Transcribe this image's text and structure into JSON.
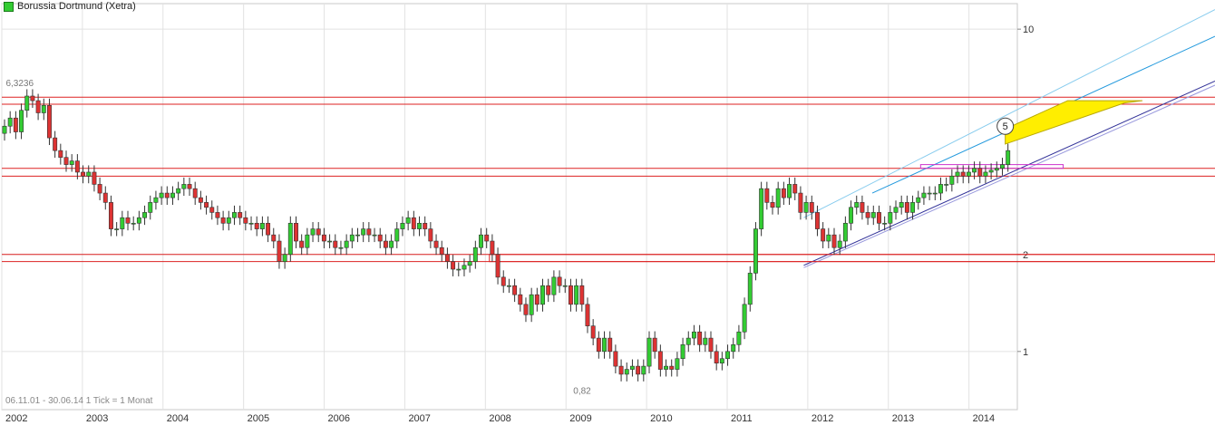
{
  "chart_data": {
    "type": "candlestick",
    "title": "Borussia Dortmund (Xetra)",
    "series_color": "#33cc33",
    "up_color": "#33cc33",
    "down_color": "#dd3333",
    "yscale": "log",
    "ylim": [
      0.66,
      12
    ],
    "y_ticks": [
      {
        "value": 10,
        "label": "10"
      },
      {
        "value": 2,
        "label": "2"
      },
      {
        "value": 1,
        "label": "1"
      }
    ],
    "xlim": [
      2002.0,
      2014.6
    ],
    "x_ticks": [
      "2002",
      "2003",
      "2004",
      "2005",
      "2006",
      "2007",
      "2008",
      "2009",
      "2010",
      "2011",
      "2012",
      "2013",
      "2014"
    ],
    "footer": "06.11.01 - 30.06.14   1 Tick = 1 Monat",
    "annotations": [
      {
        "text": "6,3236",
        "x": 2002.05,
        "y": 6.3236
      },
      {
        "text": "0,82",
        "x": 2009.2,
        "y": 0.82
      },
      {
        "text": "5",
        "x": 2014.45,
        "y": 5.0,
        "circled": true
      }
    ],
    "horizontal_lines": [
      6.15,
      5.85,
      3.7,
      3.5,
      2.0,
      1.9
    ],
    "closes": [
      5.0,
      5.3,
      4.8,
      5.6,
      6.2,
      6.0,
      5.5,
      5.8,
      4.6,
      4.2,
      4.0,
      3.8,
      3.9,
      3.6,
      3.5,
      3.6,
      3.3,
      3.1,
      2.9,
      2.4,
      2.4,
      2.6,
      2.5,
      2.5,
      2.6,
      2.7,
      2.9,
      3.0,
      3.1,
      3.0,
      3.1,
      3.2,
      3.3,
      3.2,
      3.0,
      2.9,
      2.8,
      2.7,
      2.6,
      2.5,
      2.6,
      2.7,
      2.6,
      2.5,
      2.5,
      2.4,
      2.5,
      2.3,
      2.2,
      1.9,
      2.0,
      2.5,
      2.2,
      2.1,
      2.3,
      2.4,
      2.3,
      2.2,
      2.2,
      2.1,
      2.1,
      2.2,
      2.3,
      2.3,
      2.4,
      2.3,
      2.3,
      2.2,
      2.1,
      2.2,
      2.4,
      2.5,
      2.6,
      2.4,
      2.5,
      2.4,
      2.2,
      2.1,
      2.0,
      1.9,
      1.8,
      1.8,
      1.85,
      1.9,
      2.1,
      2.3,
      2.2,
      2.0,
      1.7,
      1.6,
      1.6,
      1.5,
      1.4,
      1.3,
      1.5,
      1.4,
      1.6,
      1.5,
      1.7,
      1.6,
      1.6,
      1.4,
      1.6,
      1.4,
      1.2,
      1.1,
      1.0,
      1.1,
      1.0,
      0.9,
      0.85,
      0.88,
      0.9,
      0.85,
      0.9,
      1.1,
      1.0,
      0.88,
      0.9,
      0.88,
      0.95,
      1.05,
      1.1,
      1.15,
      1.05,
      1.1,
      1.0,
      0.92,
      0.95,
      1.0,
      1.05,
      1.15,
      1.4,
      1.75,
      2.4,
      3.2,
      2.9,
      2.8,
      3.2,
      3.0,
      3.3,
      3.1,
      2.7,
      2.9,
      2.7,
      2.4,
      2.2,
      2.3,
      2.1,
      2.2,
      2.5,
      2.8,
      2.9,
      2.7,
      2.6,
      2.7,
      2.5,
      2.5,
      2.7,
      2.8,
      2.9,
      2.7,
      2.9,
      3.0,
      3.1,
      3.1,
      3.1,
      3.3,
      3.3,
      3.5,
      3.6,
      3.5,
      3.6,
      3.7,
      3.5,
      3.6,
      3.65,
      3.7,
      3.8,
      4.2
    ]
  }
}
